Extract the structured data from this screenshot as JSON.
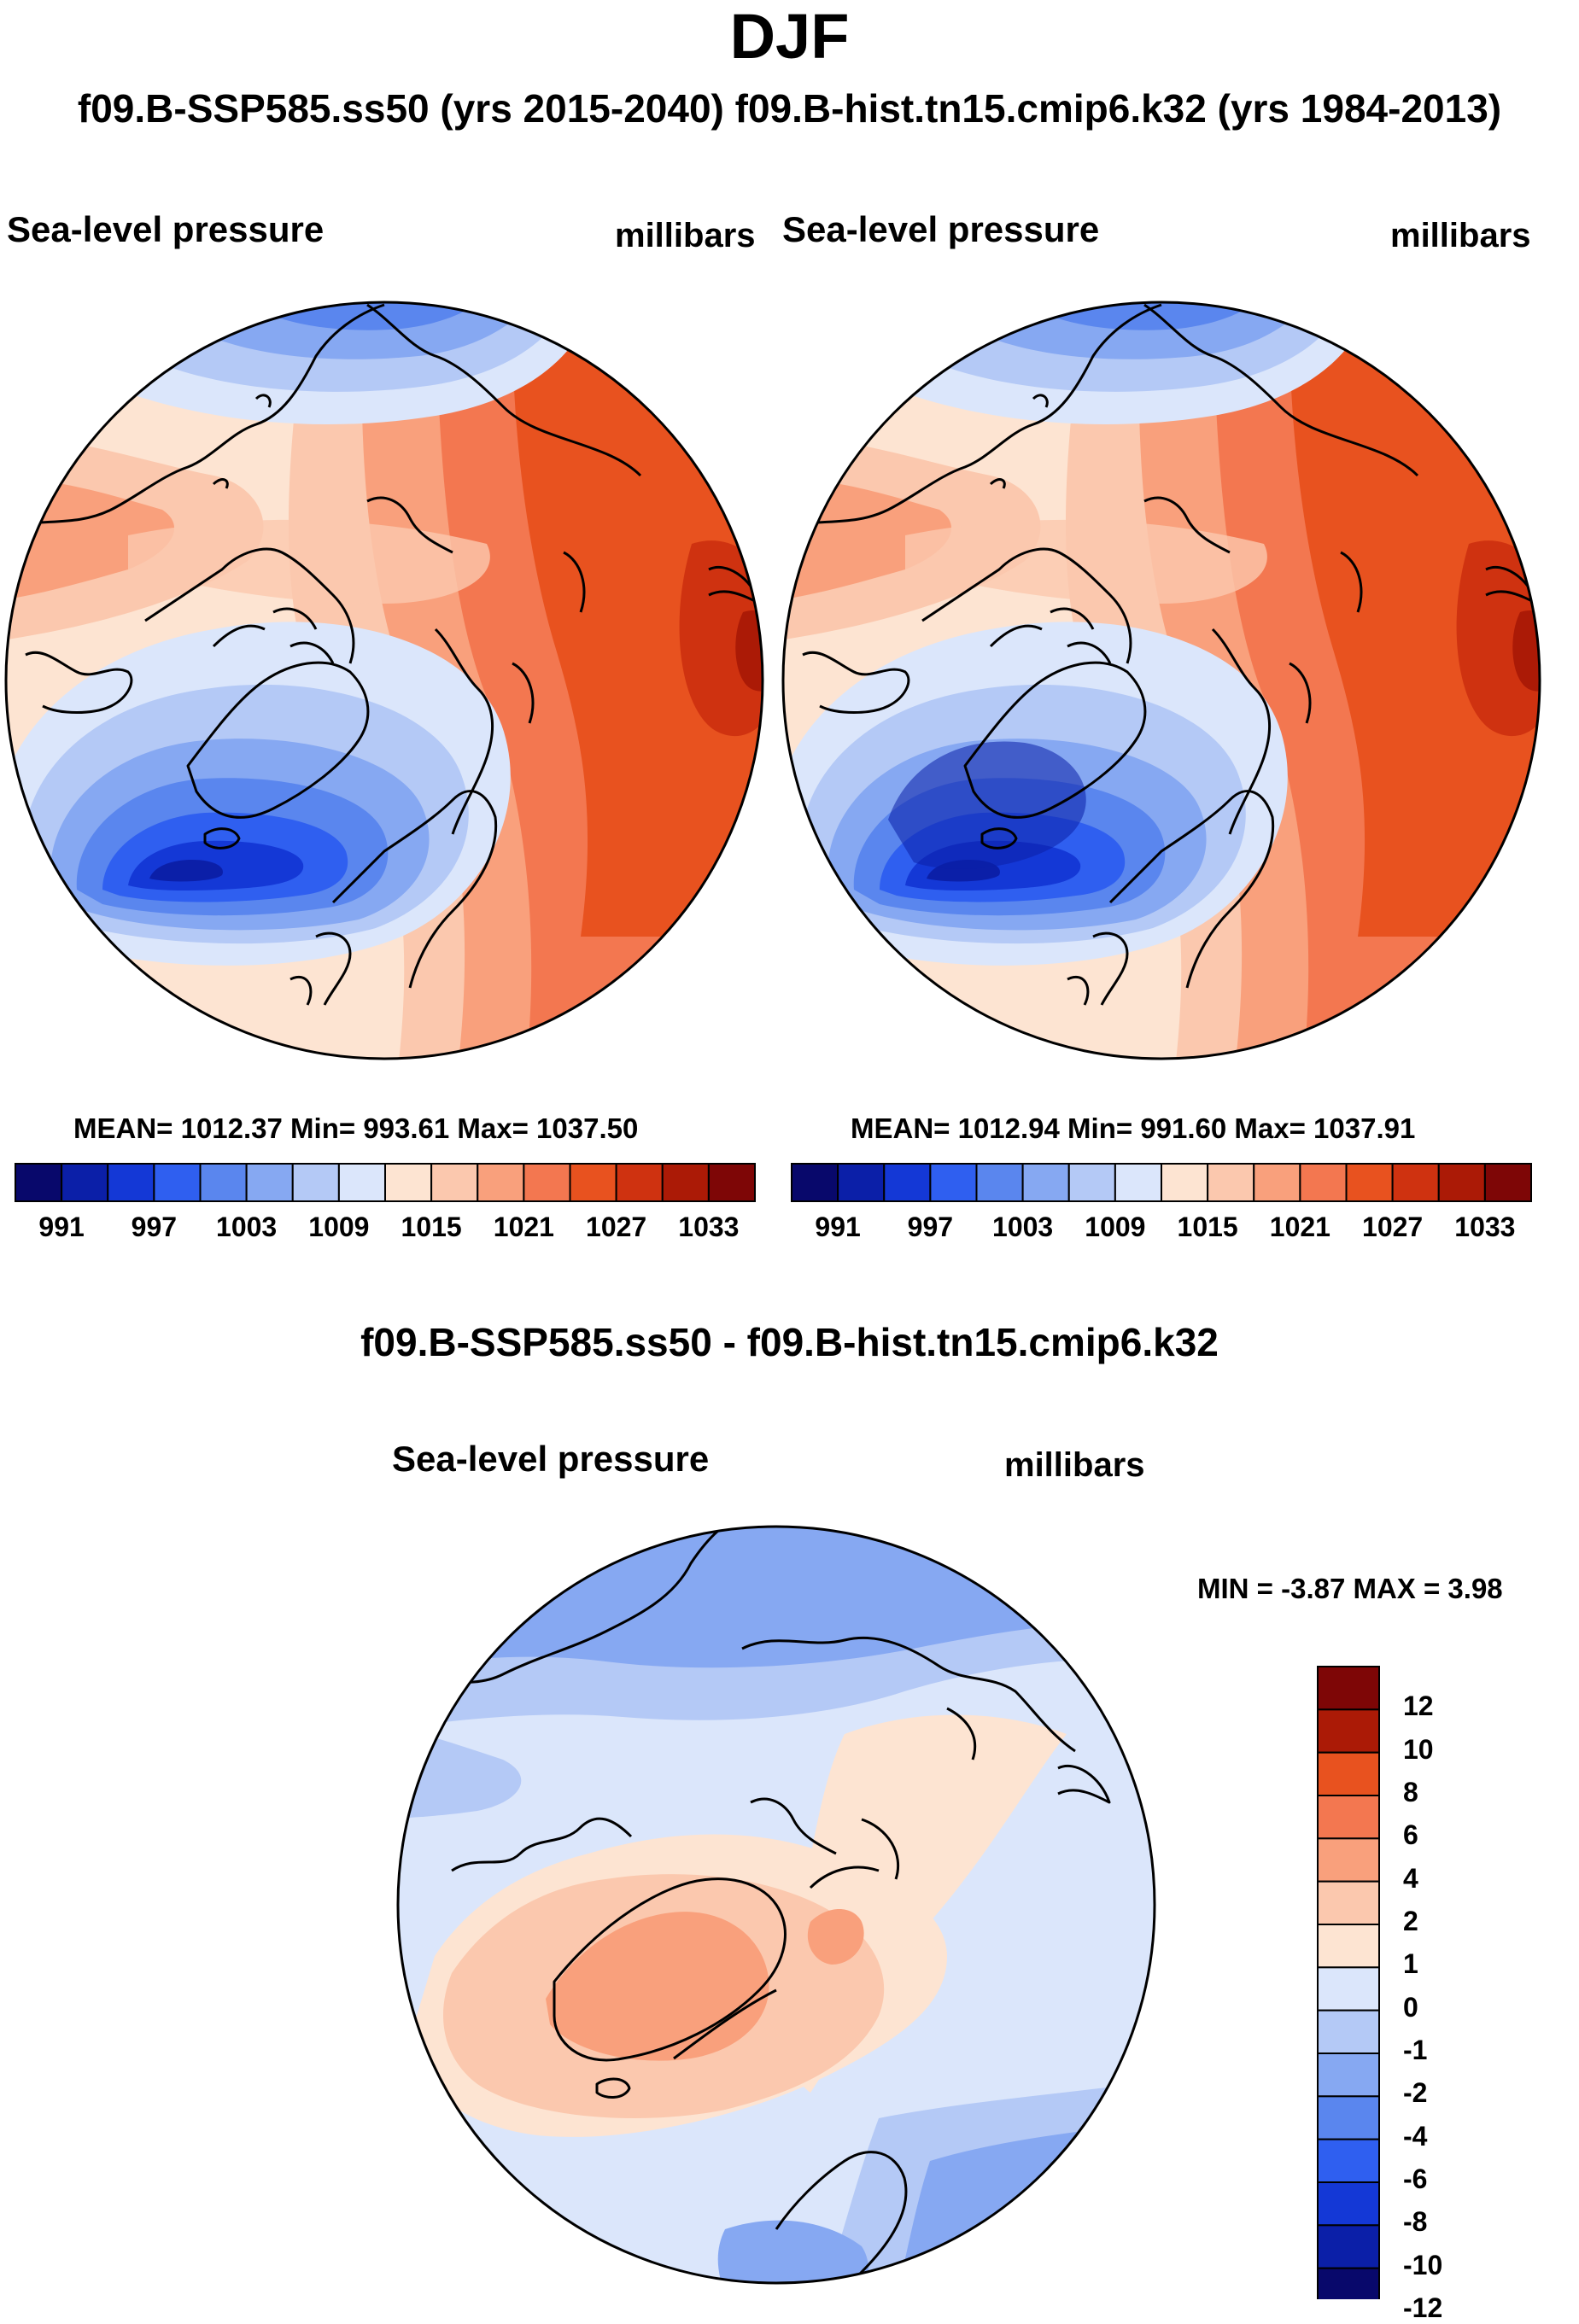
{
  "figure": {
    "title": "DJF",
    "subtitle": "f09.B-SSP585.ss50 (yrs 2015-2040)  f09.B-hist.tn15.cmip6.k32 (yrs 1984-2013)",
    "diff_title": "f09.B-SSP585.ss50 - f09.B-hist.tn15.cmip6.k32"
  },
  "panels": {
    "left": {
      "name": "Sea-level pressure",
      "units": "millibars",
      "stats": "MEAN= 1012.37  Min= 993.61  Max= 1037.50"
    },
    "right": {
      "name": "Sea-level pressure",
      "units": "millibars",
      "stats": "MEAN= 1012.94  Min= 991.60  Max= 1037.91"
    },
    "diff": {
      "name": "Sea-level pressure",
      "units": "millibars",
      "minmax": "MIN =  -3.87 MAX =   3.98"
    }
  },
  "abs_colorbar": {
    "colors": [
      "#08086b",
      "#0b1fa8",
      "#1438d6",
      "#2f5ff0",
      "#5a86ee",
      "#86a8f2",
      "#b4c9f6",
      "#dbe6fb",
      "#fde4d2",
      "#fbc8ae",
      "#f9a07c",
      "#f37750",
      "#e8521f",
      "#cf3210",
      "#ab1a06",
      "#7e0606"
    ],
    "ticks": [
      "991",
      "997",
      "1003",
      "1009",
      "1015",
      "1021",
      "1027",
      "1033"
    ]
  },
  "diff_colorbar": {
    "colors": [
      "#7e0606",
      "#ab1a06",
      "#e8521f",
      "#f37750",
      "#f9a07c",
      "#fbc8ae",
      "#fde4d2",
      "#dbe6fb",
      "#b4c9f6",
      "#86a8f2",
      "#5a86ee",
      "#2f5ff0",
      "#1438d6",
      "#0b1fa8",
      "#08086b"
    ],
    "labels": [
      "12",
      "10",
      "8",
      "6",
      "4",
      "2",
      "1",
      "0",
      "-1",
      "-2",
      "-4",
      "-6",
      "-8",
      "-10",
      "-12"
    ]
  }
}
